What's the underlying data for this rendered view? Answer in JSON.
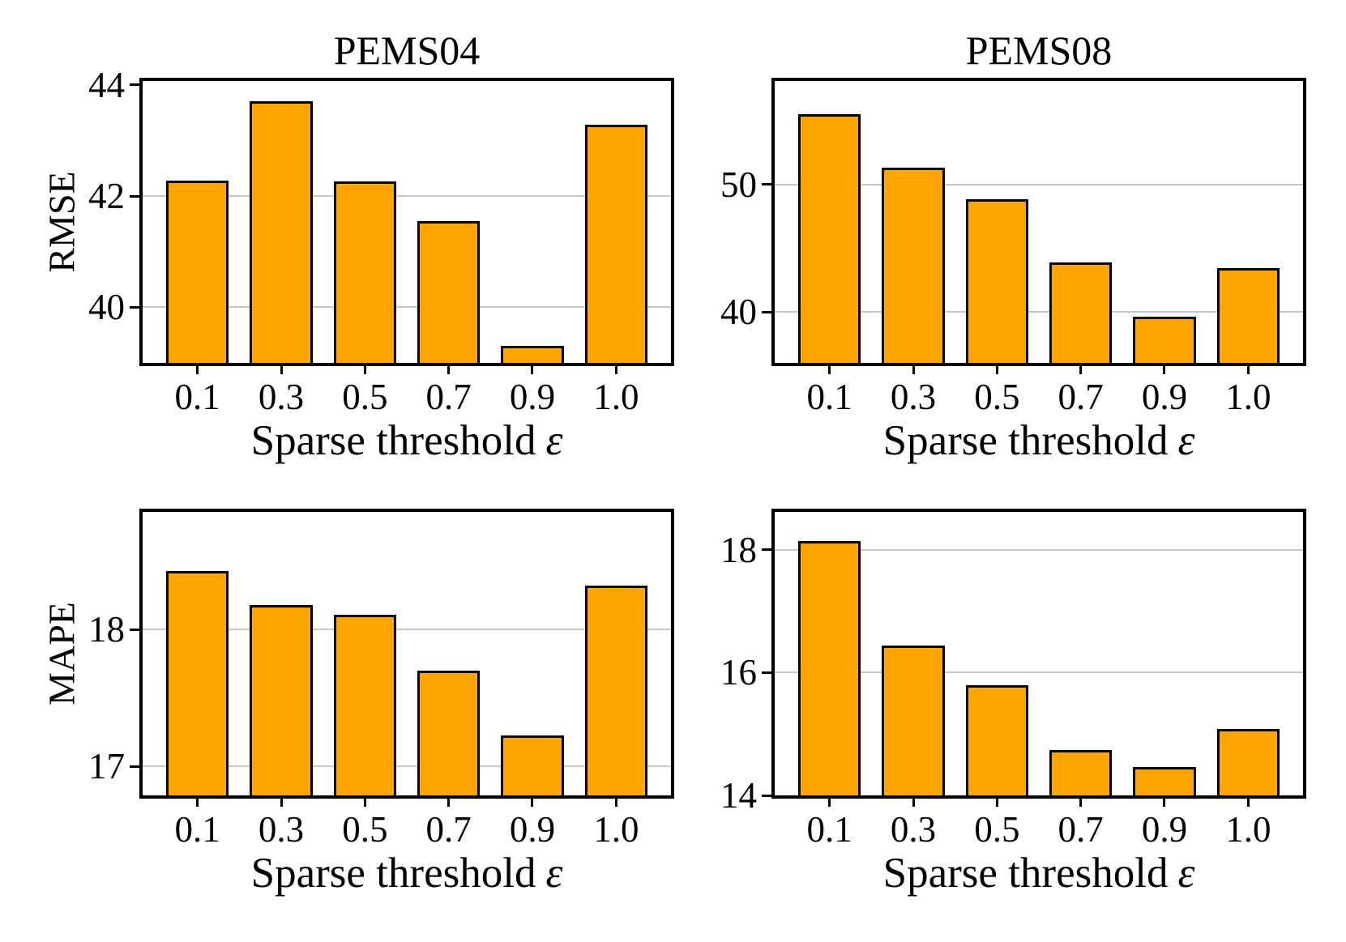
{
  "figure": {
    "background_color": "#ffffff",
    "bar_color": "#FFA500",
    "bar_edge_color": "#000000",
    "axis_color": "#000000",
    "grid_color": "#c8c8c8",
    "xlabel_prefix": "Sparse threshold",
    "xlabel_symbol": "ε"
  },
  "chart_data": [
    {
      "type": "bar",
      "title": "PEMS04",
      "ylabel": "RMSE",
      "xlabel": "Sparse threshold ε",
      "categories": [
        "0.1",
        "0.3",
        "0.5",
        "0.7",
        "0.9",
        "1.0"
      ],
      "values": [
        42.28,
        43.7,
        42.26,
        41.55,
        39.3,
        43.28
      ],
      "ylim": [
        39.0,
        44.07
      ],
      "yticks": [
        {
          "label": "44",
          "value": 44
        },
        {
          "label": "42",
          "value": 42
        },
        {
          "label": "40",
          "value": 40
        }
      ],
      "gridlines": [
        42,
        40
      ],
      "grid": "horizontal",
      "legend": "none"
    },
    {
      "type": "bar",
      "title": "PEMS08",
      "xlabel": "Sparse threshold ε",
      "categories": [
        "0.1",
        "0.3",
        "0.5",
        "0.7",
        "0.9",
        "1.0"
      ],
      "values": [
        55.5,
        51.3,
        48.8,
        43.9,
        39.6,
        43.4
      ],
      "ylim": [
        36.0,
        58.1
      ],
      "yticks": [
        {
          "label": "50",
          "value": 50
        },
        {
          "label": "40",
          "value": 40
        }
      ],
      "gridlines": [
        50,
        40
      ],
      "grid": "horizontal",
      "legend": "none"
    },
    {
      "type": "bar",
      "ylabel": "MAPE",
      "xlabel": "Sparse threshold ε",
      "categories": [
        "0.1",
        "0.3",
        "0.5",
        "0.7",
        "0.9",
        "1.0"
      ],
      "values": [
        18.43,
        18.18,
        18.11,
        17.7,
        17.23,
        18.32
      ],
      "ylim": [
        16.79,
        18.86
      ],
      "yticks": [
        {
          "label": "18",
          "value": 18
        },
        {
          "label": "17",
          "value": 17
        }
      ],
      "gridlines": [
        18,
        17
      ],
      "grid": "horizontal",
      "legend": "none"
    },
    {
      "type": "bar",
      "xlabel": "Sparse threshold ε",
      "categories": [
        "0.1",
        "0.3",
        "0.5",
        "0.7",
        "0.9",
        "1.0"
      ],
      "values": [
        18.14,
        16.44,
        15.8,
        14.74,
        14.46,
        15.08
      ],
      "ylim": [
        14.0,
        18.62
      ],
      "yticks": [
        {
          "label": "18",
          "value": 18
        },
        {
          "label": "16",
          "value": 16
        },
        {
          "label": "14",
          "value": 14
        }
      ],
      "gridlines": [
        18,
        16
      ],
      "grid": "horizontal",
      "legend": "none"
    }
  ]
}
